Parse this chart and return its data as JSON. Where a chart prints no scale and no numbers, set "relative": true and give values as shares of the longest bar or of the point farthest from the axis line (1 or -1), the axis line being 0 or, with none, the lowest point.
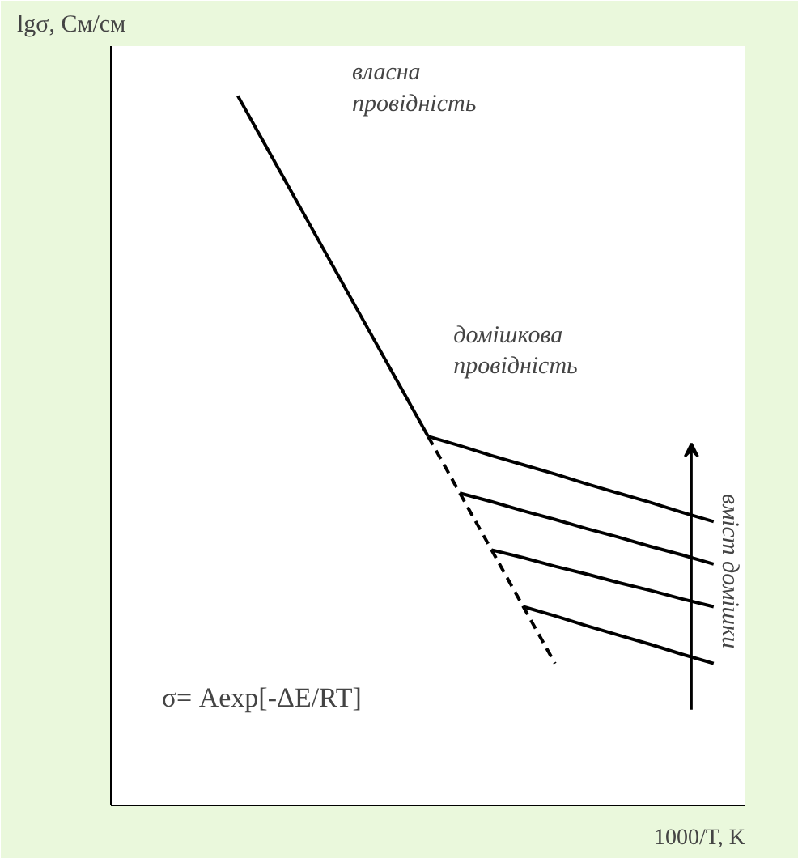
{
  "chart_data": {
    "type": "line",
    "relative": true,
    "xlabel": "1000/T, K",
    "ylabel": "lgσ, См/см",
    "categories": [
      null,
      null,
      null,
      null,
      null,
      null,
      null,
      null,
      null,
      null,
      null,
      null,
      null,
      null,
      null,
      null,
      null,
      null,
      null,
      null,
      null
    ],
    "grid": false,
    "marker": "none",
    "series": [
      {
        "color": "#000000",
        "line_style": "solid",
        "values": [
          null,
          null,
          null,
          null,
          1.0,
          0.92,
          0.84,
          0.76,
          0.68,
          0.6,
          0.52,
          null,
          null,
          null,
          null,
          null,
          null,
          null,
          null,
          null,
          null
        ]
      },
      {
        "color": "#000000",
        "line_style": "dashed",
        "values": [
          null,
          null,
          null,
          null,
          null,
          null,
          null,
          null,
          null,
          null,
          0.52,
          0.44,
          0.36,
          0.28,
          0.2,
          null,
          null,
          null,
          null,
          null,
          null
        ]
      },
      {
        "color": "#000000",
        "line_style": "solid",
        "values": [
          null,
          null,
          null,
          null,
          null,
          null,
          null,
          null,
          null,
          null,
          0.52,
          0.507,
          0.493,
          0.48,
          0.467,
          0.453,
          0.44,
          0.427,
          0.413,
          0.4,
          null
        ]
      },
      {
        "color": "#000000",
        "line_style": "solid",
        "values": [
          null,
          null,
          null,
          null,
          null,
          null,
          null,
          null,
          null,
          null,
          null,
          0.44,
          0.428,
          0.415,
          0.403,
          0.39,
          0.378,
          0.365,
          0.353,
          0.34,
          null
        ]
      },
      {
        "color": "#000000",
        "line_style": "solid",
        "values": [
          null,
          null,
          null,
          null,
          null,
          null,
          null,
          null,
          null,
          null,
          null,
          null,
          0.36,
          0.349,
          0.337,
          0.326,
          0.314,
          0.303,
          0.291,
          0.28,
          null
        ]
      },
      {
        "color": "#000000",
        "line_style": "solid",
        "values": [
          null,
          null,
          null,
          null,
          null,
          null,
          null,
          null,
          null,
          null,
          null,
          null,
          null,
          0.28,
          0.267,
          0.253,
          0.24,
          0.227,
          0.213,
          0.2,
          null
        ]
      }
    ],
    "annotations": [
      "власна\nпровідність",
      "домішкова\nпровідність",
      "σ= Aexp[-ΔE/RT]",
      "вміст домішки"
    ]
  }
}
